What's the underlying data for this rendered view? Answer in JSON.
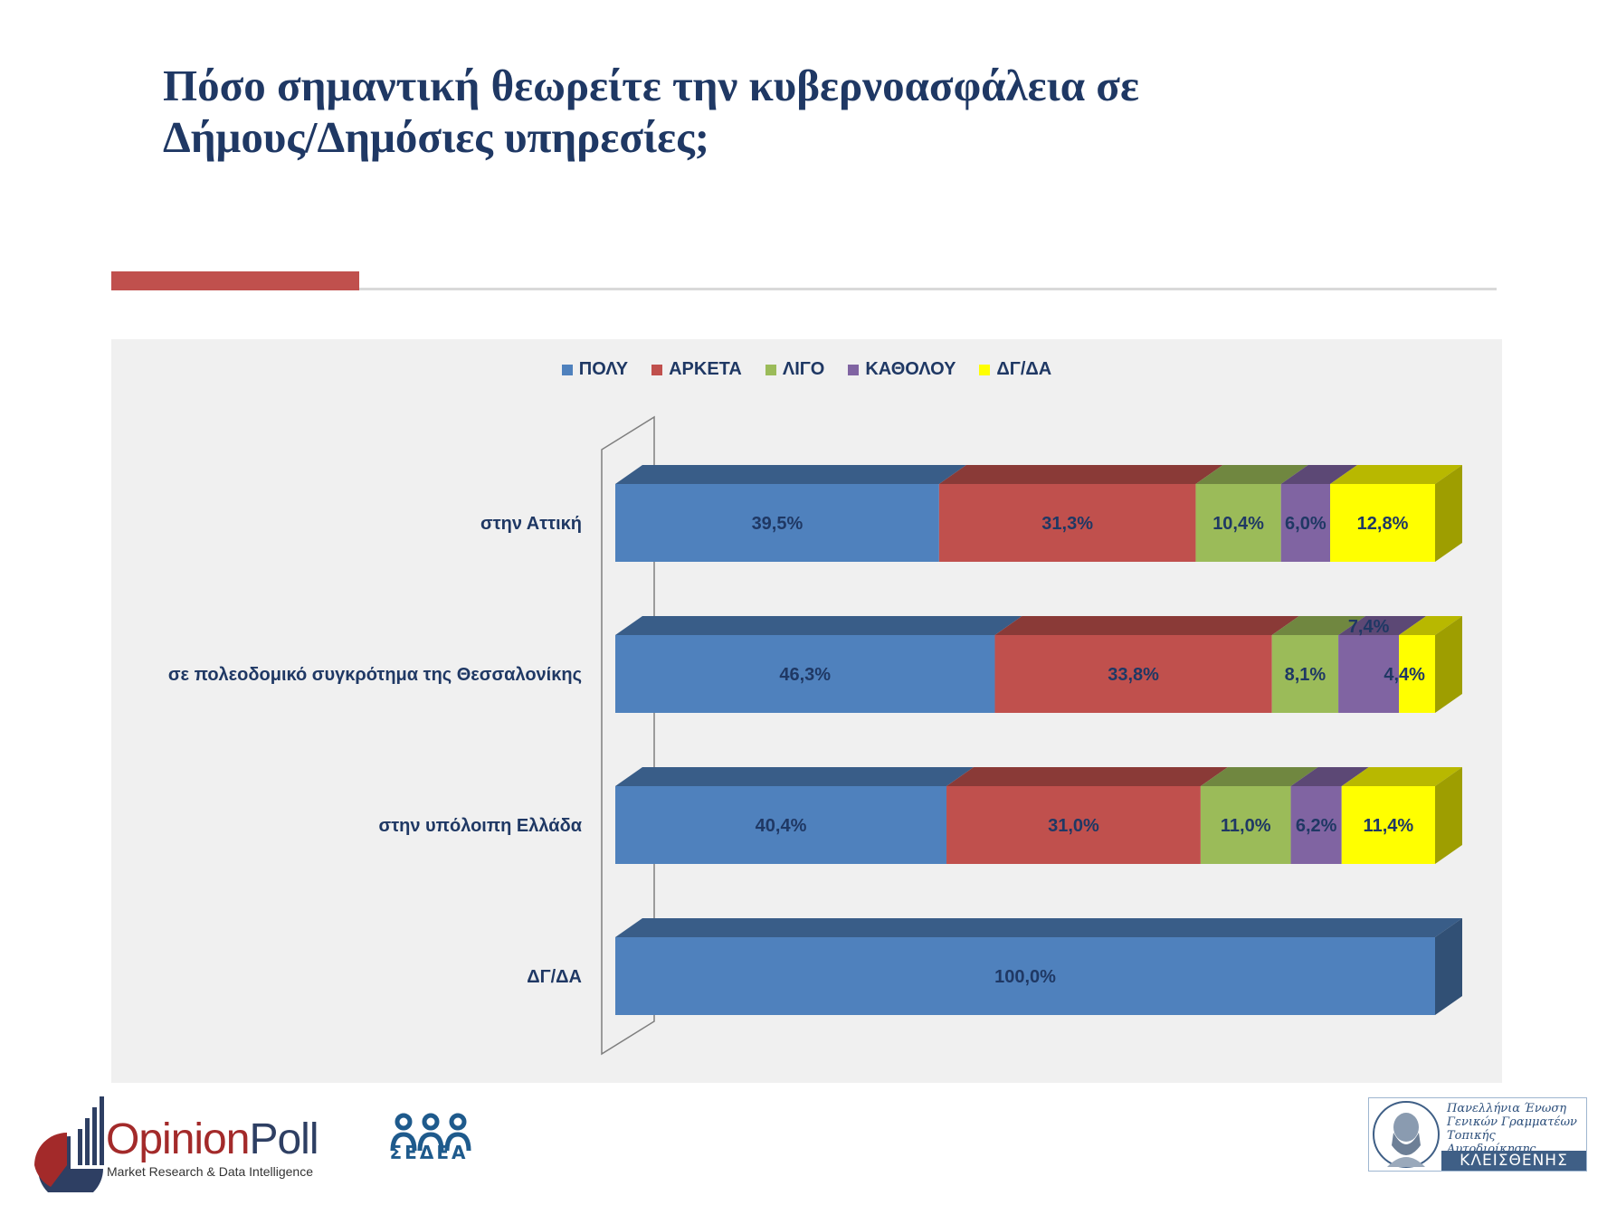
{
  "title": {
    "line1": "Πόσο σημαντική θεωρείτε την κυβερνοασφάλεια σε",
    "line2": "Δήμους/Δημόσιες υπηρεσίες;"
  },
  "chart_data": {
    "type": "bar",
    "orientation": "horizontal",
    "stacked": "100%",
    "style": "3d",
    "title": "",
    "xlabel": "",
    "ylabel": "",
    "xlim": [
      0,
      100
    ],
    "grid": false,
    "legend_position": "top-center",
    "categories": [
      "στην Αττική",
      "σε πολεοδομικό συγκρότημα της Θεσσαλονίκης",
      "στην υπόλοιπη Ελλάδα",
      "ΔΓ/ΔΑ"
    ],
    "series": [
      {
        "name": "ΠΟΛΥ",
        "color": "#4f81bd",
        "values": [
          39.5,
          46.3,
          40.4,
          100.0
        ],
        "labels": [
          "39,5%",
          "46,3%",
          "40,4%",
          "100,0%"
        ]
      },
      {
        "name": "ΑΡΚΕΤΑ",
        "color": "#c0504d",
        "values": [
          31.3,
          33.8,
          31.0,
          0
        ],
        "labels": [
          "31,3%",
          "33,8%",
          "31,0%",
          ""
        ]
      },
      {
        "name": "ΛΙΓΟ",
        "color": "#9bbb59",
        "values": [
          10.4,
          8.1,
          11.0,
          0
        ],
        "labels": [
          "10,4%",
          "8,1%",
          "11,0%",
          ""
        ]
      },
      {
        "name": "ΚΑΘΟΛΟΥ",
        "color": "#8064a2",
        "values": [
          6.0,
          7.4,
          6.2,
          0
        ],
        "labels": [
          "6,0%",
          "7,4%",
          "6,2%",
          ""
        ]
      },
      {
        "name": "ΔΓ/ΔΑ",
        "color": "#ffff00",
        "values": [
          12.8,
          4.4,
          11.4,
          0
        ],
        "labels": [
          "12,8%",
          "4,4%",
          "11,4%",
          ""
        ]
      }
    ]
  },
  "logos": {
    "opinionpoll": {
      "word_part1": "Opinion",
      "word_part2": "Poll",
      "tagline": "Market Research & Data Intelligence"
    },
    "sedea": {
      "name": "ΣΕΔΕΑ"
    },
    "kleisthenis": {
      "line1": "Πανελλήνια Ένωση",
      "line2": "Γενικών Γραμματέων",
      "line3": "Τοπικής Αυτοδιοίκησης",
      "name": "ΚΛΕΙΣΘΕΝΗΣ"
    }
  }
}
